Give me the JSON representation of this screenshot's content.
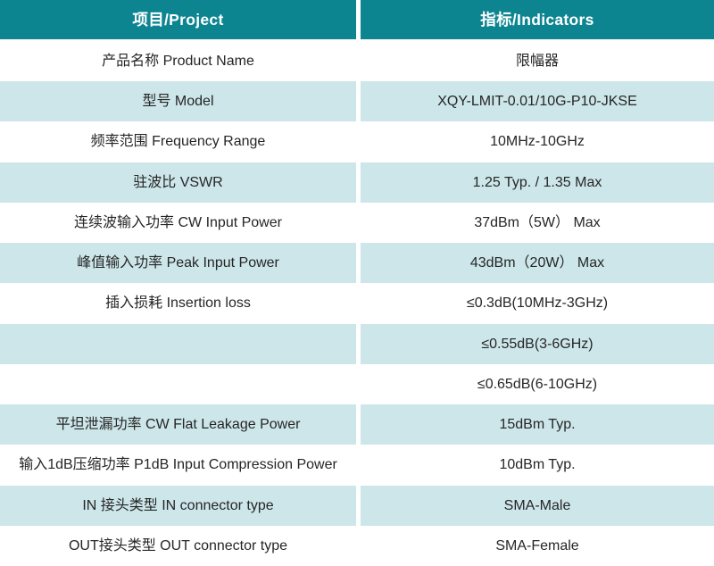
{
  "colors": {
    "header_bg": "#0c8591",
    "header_text": "#ffffff",
    "stripe_bg": "#cde6ea",
    "row_bg": "#ffffff",
    "text": "#262626"
  },
  "table": {
    "header": {
      "project": "项目/Project",
      "indicators": "指标/Indicators"
    },
    "rows": [
      {
        "project": "产品名称 Product Name",
        "indicator": "限幅器"
      },
      {
        "project": "型号 Model",
        "indicator": "XQY-LMIT-0.01/10G-P10-JKSE"
      },
      {
        "project": "频率范围 Frequency Range",
        "indicator": "10MHz-10GHz"
      },
      {
        "project": "驻波比 VSWR",
        "indicator": "1.25 Typ. / 1.35 Max"
      },
      {
        "project": "连续波输入功率 CW Input Power",
        "indicator": "37dBm（5W） Max"
      },
      {
        "project": "峰值输入功率 Peak Input Power",
        "indicator": "43dBm（20W） Max"
      },
      {
        "project": "插入损耗 Insertion loss",
        "indicator": "≤0.3dB(10MHz-3GHz)"
      },
      {
        "project": "",
        "indicator": "≤0.55dB(3-6GHz)"
      },
      {
        "project": "",
        "indicator": "≤0.65dB(6-10GHz)"
      },
      {
        "project": "平坦泄漏功率 CW Flat Leakage Power",
        "indicator": "15dBm Typ."
      },
      {
        "project": "输入1dB压缩功率 P1dB Input Compression Power",
        "indicator": "10dBm Typ."
      },
      {
        "project": "IN 接头类型 IN connector type",
        "indicator": "SMA-Male"
      },
      {
        "project": "OUT接头类型 OUT connector type",
        "indicator": "SMA-Female"
      }
    ]
  }
}
